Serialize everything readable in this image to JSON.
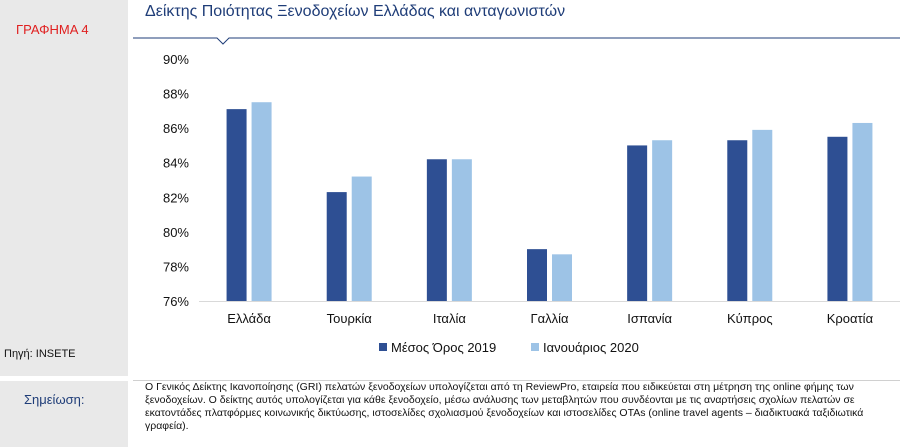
{
  "figure_label": "ΓΡΑΦΗΜΑ 4",
  "source": "Πηγή: INSETE",
  "note_label": "Σημείωση:",
  "note_text": "Ο Γενικός Δείκτης Ικανοποίησης (GRI) πελατών ξενοδοχείων υπολογίζεται από τη ReviewPro, εταιρεία που ειδικεύεται στη μέτρηση της online φήμης των ξενοδοχείων. Ο δείκτης αυτός υπολογίζεται για κάθε ξενοδοχείο, μέσω ανάλυσης των μεταβλητών που συνδέονται με τις αναρτήσεις σχολίων πελατών σε εκατοντάδες πλατφόρμες κοινωνικής δικτύωσης, ιστοσελίδες σχολιασμού ξενοδοχείων και ιστοσελίδες OTAs (online travel agents – διαδικτυακά ταξιδιωτικά γραφεία).",
  "colors": {
    "series1": "#2e4f93",
    "series2": "#9dc3e6",
    "title": "#1f3d78",
    "label": "#e02020"
  },
  "chart_data": {
    "type": "bar",
    "title": "Δείκτης Ποιότητας Ξενοδοχείων Ελλάδας και ανταγωνιστών",
    "categories": [
      "Ελλάδα",
      "Τουρκία",
      "Ιταλία",
      "Γαλλία",
      "Ισπανία",
      "Κύπρος",
      "Κροατία"
    ],
    "series": [
      {
        "name": "Μέσος Όρος 2019",
        "values": [
          87.1,
          82.3,
          84.2,
          79.0,
          85.0,
          85.3,
          85.5
        ]
      },
      {
        "name": "Ιανουάριος 2020",
        "values": [
          87.5,
          83.2,
          84.2,
          78.7,
          85.3,
          85.9,
          86.3
        ]
      }
    ],
    "ylim": [
      76,
      90
    ],
    "yticks": [
      76,
      78,
      80,
      82,
      84,
      86,
      88,
      90
    ],
    "ytick_labels": [
      "76%",
      "78%",
      "80%",
      "82%",
      "84%",
      "86%",
      "88%",
      "90%"
    ],
    "xlabel": "",
    "ylabel": "",
    "grid": false,
    "legend": "bottom-center"
  }
}
